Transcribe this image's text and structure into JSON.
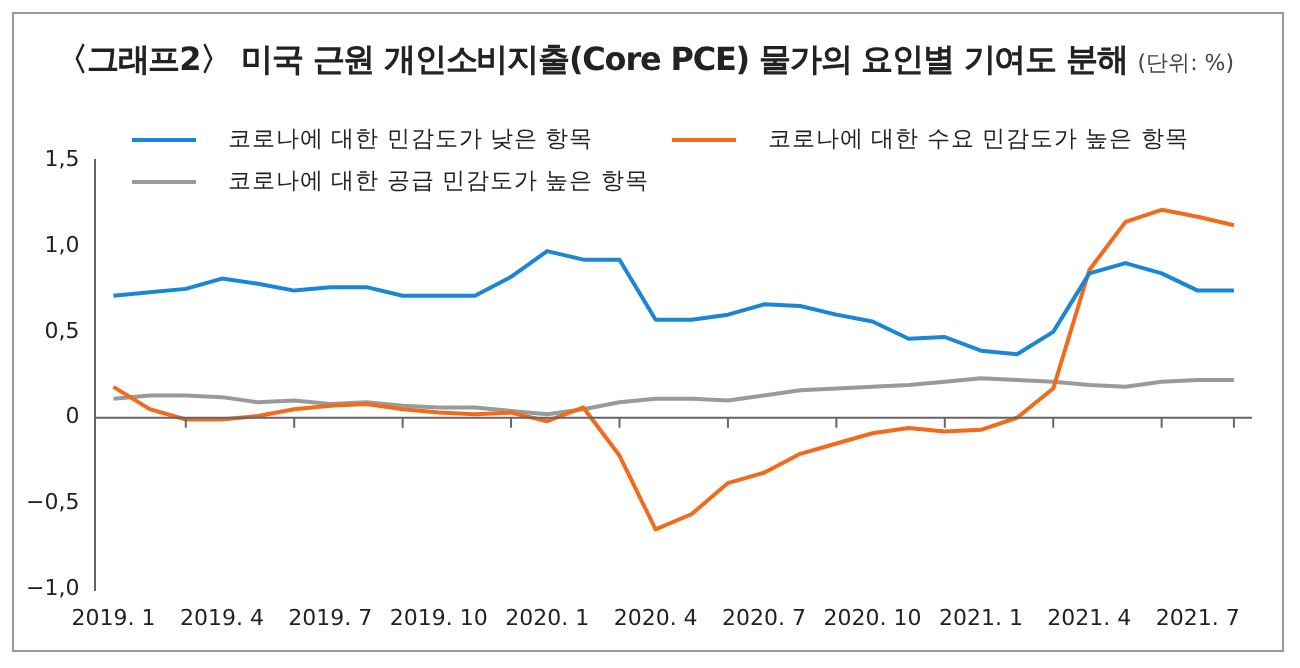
{
  "chart_data": {
    "type": "line",
    "title": "〈그래프2〉 미국 근원 개인소비지출(Core PCE) 물가의 요인별 기여도 분해",
    "subtitle": "(단위: %)",
    "categories": [
      "2019. 1",
      null,
      null,
      "2019. 4",
      null,
      null,
      "2019. 7",
      null,
      null,
      "2019. 10",
      null,
      null,
      "2020. 1",
      null,
      null,
      "2020. 4",
      null,
      null,
      "2020. 7",
      null,
      null,
      "2020. 10",
      null,
      null,
      "2021. 1",
      null,
      null,
      "2021. 4",
      null,
      null,
      "2021. 7",
      null
    ],
    "series": [
      {
        "name": "코로나에 대한 민감도가 낮은 항목",
        "color": "#1a86d6",
        "values": [
          0.71,
          0.73,
          0.75,
          0.81,
          0.78,
          0.74,
          0.76,
          0.76,
          0.71,
          0.71,
          0.71,
          0.82,
          0.97,
          0.92,
          0.92,
          0.57,
          0.57,
          0.6,
          0.66,
          0.65,
          0.6,
          0.56,
          0.46,
          0.47,
          0.39,
          0.37,
          0.5,
          0.84,
          0.9,
          0.84,
          0.74,
          0.74
        ]
      },
      {
        "name": "코로나에 대한 수요 민감도가 높은 항목",
        "color": "#f26a1b",
        "values": [
          0.18,
          0.05,
          -0.01,
          -0.01,
          0.01,
          0.05,
          0.07,
          0.08,
          0.05,
          0.03,
          0.02,
          0.03,
          -0.02,
          0.06,
          -0.22,
          -0.65,
          -0.56,
          -0.38,
          -0.32,
          -0.21,
          -0.15,
          -0.09,
          -0.06,
          -0.08,
          -0.07,
          0.0,
          0.17,
          0.86,
          1.14,
          1.21,
          1.17,
          1.12
        ]
      },
      {
        "name": "코로나에 대한 공급 민감도가 높은 항목",
        "color": "#9a9a9a",
        "values": [
          0.11,
          0.13,
          0.13,
          0.12,
          0.09,
          0.1,
          0.08,
          0.09,
          0.07,
          0.06,
          0.06,
          0.04,
          0.02,
          0.05,
          0.09,
          0.11,
          0.11,
          0.1,
          0.13,
          0.16,
          0.17,
          0.18,
          0.19,
          0.21,
          0.23,
          0.22,
          0.21,
          0.19,
          0.18,
          0.21,
          0.22,
          0.22
        ]
      }
    ],
    "ylim": [
      -1.0,
      1.5
    ],
    "yticks": [
      {
        "value": -1.0,
        "label": "−1,0"
      },
      {
        "value": -0.5,
        "label": "−0,5"
      },
      {
        "value": 0,
        "label": "0"
      },
      {
        "value": 0.5,
        "label": "0,5"
      },
      {
        "value": 1.0,
        "label": "1,0"
      },
      {
        "value": 1.5,
        "label": "1,5"
      }
    ],
    "legend": "top left",
    "marker": "none",
    "line_style": "solid"
  }
}
